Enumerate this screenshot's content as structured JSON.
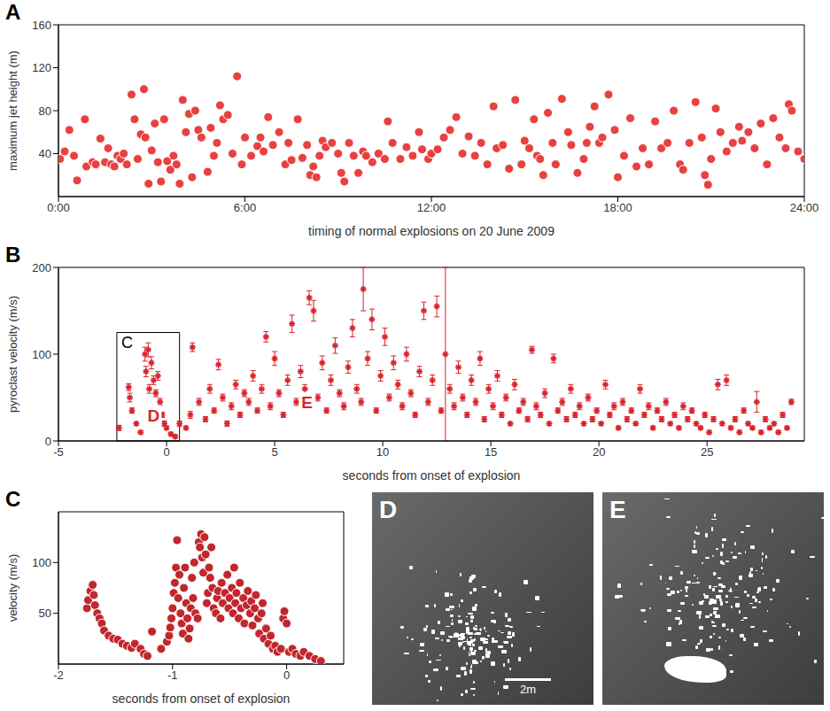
{
  "chart_data": [
    {
      "panel": "A",
      "type": "scatter",
      "x_label": "timing of normal explosions on 20 June 2009",
      "y_label": "maximum jet height (m)",
      "color": "#e8413f",
      "marker": "circle",
      "x": [
        0.05,
        0.2,
        0.35,
        0.5,
        0.6,
        0.85,
        0.9,
        1.1,
        1.2,
        1.35,
        1.5,
        1.6,
        1.7,
        1.8,
        1.9,
        2.0,
        2.1,
        2.2,
        2.35,
        2.45,
        2.55,
        2.65,
        2.75,
        2.8,
        2.9,
        3.0,
        3.1,
        3.2,
        3.3,
        3.4,
        3.5,
        3.6,
        3.7,
        3.8,
        3.9,
        4.0,
        4.1,
        4.2,
        4.3,
        4.4,
        4.5,
        4.6,
        4.8,
        4.9,
        5.0,
        5.1,
        5.2,
        5.3,
        5.45,
        5.6,
        5.75,
        5.9,
        6.0,
        6.2,
        6.4,
        6.5,
        6.6,
        6.75,
        6.9,
        7.1,
        7.3,
        7.4,
        7.5,
        7.7,
        7.85,
        8.0,
        8.1,
        8.2,
        8.3,
        8.4,
        8.5,
        8.6,
        8.8,
        9.0,
        9.1,
        9.2,
        9.35,
        9.5,
        9.65,
        9.8,
        9.9,
        10.1,
        10.3,
        10.5,
        10.6,
        10.75,
        11.0,
        11.2,
        11.4,
        11.6,
        11.7,
        11.9,
        12.0,
        12.2,
        12.4,
        12.6,
        12.8,
        13.0,
        13.2,
        13.4,
        13.6,
        13.8,
        14.0,
        14.1,
        14.3,
        14.5,
        14.7,
        14.9,
        15.0,
        15.15,
        15.3,
        15.4,
        15.5,
        15.6,
        15.75,
        15.9,
        16.0,
        16.2,
        16.4,
        16.5,
        16.7,
        16.9,
        17.0,
        17.1,
        17.25,
        17.4,
        17.5,
        17.7,
        17.9,
        18.0,
        18.2,
        18.4,
        18.6,
        18.8,
        19.0,
        19.2,
        19.4,
        19.6,
        19.8,
        20.0,
        20.1,
        20.3,
        20.5,
        20.7,
        20.8,
        20.9,
        21.0,
        21.15,
        21.3,
        21.5,
        21.7,
        21.9,
        22.0,
        22.2,
        22.4,
        22.6,
        22.8,
        23.0,
        23.2,
        23.4,
        23.5,
        23.6,
        23.8,
        24.0
      ],
      "values": [
        35,
        42,
        62,
        38,
        15,
        72,
        28,
        32,
        30,
        54,
        32,
        45,
        30,
        28,
        38,
        35,
        40,
        30,
        95,
        72,
        35,
        58,
        100,
        55,
        12,
        43,
        68,
        32,
        14,
        72,
        33,
        25,
        38,
        30,
        12,
        90,
        60,
        77,
        18,
        80,
        62,
        55,
        23,
        64,
        38,
        50,
        85,
        72,
        76,
        40,
        112,
        30,
        55,
        38,
        47,
        55,
        42,
        74,
        48,
        60,
        30,
        50,
        34,
        72,
        36,
        48,
        20,
        28,
        18,
        38,
        52,
        46,
        50,
        40,
        22,
        14,
        50,
        38,
        22,
        42,
        38,
        32,
        40,
        35,
        70,
        50,
        35,
        46,
        38,
        60,
        44,
        35,
        40,
        44,
        55,
        62,
        74,
        40,
        56,
        38,
        50,
        30,
        84,
        45,
        48,
        26,
        90,
        30,
        52,
        45,
        72,
        38,
        35,
        20,
        78,
        50,
        30,
        91,
        60,
        48,
        22,
        35,
        50,
        65,
        84,
        50,
        55,
        95,
        62,
        18,
        38,
        73,
        28,
        45,
        30,
        70,
        45,
        50,
        80,
        30,
        25,
        50,
        88,
        55,
        20,
        11,
        35,
        82,
        60,
        42,
        50,
        65,
        52,
        60,
        45,
        68,
        30,
        73,
        55,
        45,
        86,
        80,
        42,
        35
      ],
      "xlim": [
        0,
        24
      ],
      "xticks": [
        {
          "value": 0,
          "label": "0:00"
        },
        {
          "value": 6,
          "label": "6:00"
        },
        {
          "value": 12,
          "label": "12:00"
        },
        {
          "value": 18,
          "label": "18:00"
        },
        {
          "value": 24,
          "label": "24:00"
        }
      ],
      "ylim": [
        0,
        160
      ],
      "yticks": [
        40,
        80,
        120,
        160
      ]
    },
    {
      "panel": "B",
      "type": "scatter",
      "x_label": "seconds from onset of explosion",
      "y_label": "pyroclast velocity (m/s)",
      "color": "#d9222a",
      "marker": "star",
      "x": [
        -2.2,
        -1.75,
        -1.7,
        -1.6,
        -1.4,
        -1.2,
        -1.0,
        -0.95,
        -0.85,
        -0.8,
        -0.7,
        -0.6,
        -0.5,
        -0.4,
        -0.3,
        -0.2,
        -0.1,
        0.0,
        0.2,
        0.4,
        0.6,
        0.9,
        1.1,
        1.2,
        1.5,
        1.8,
        2.0,
        2.2,
        2.4,
        2.6,
        2.8,
        3.0,
        3.2,
        3.4,
        3.6,
        3.8,
        4.0,
        4.2,
        4.4,
        4.6,
        4.8,
        5.0,
        5.2,
        5.4,
        5.6,
        5.8,
        6.0,
        6.2,
        6.4,
        6.6,
        6.8,
        7.0,
        7.2,
        7.4,
        7.6,
        7.8,
        8.0,
        8.2,
        8.4,
        8.6,
        8.8,
        9.0,
        9.1,
        9.3,
        9.5,
        9.7,
        9.9,
        10.1,
        10.3,
        10.5,
        10.7,
        10.9,
        11.1,
        11.3,
        11.5,
        11.7,
        11.9,
        12.1,
        12.3,
        12.5,
        12.7,
        12.9,
        13.1,
        13.3,
        13.5,
        13.7,
        13.9,
        14.1,
        14.3,
        14.5,
        14.7,
        14.9,
        15.1,
        15.3,
        15.5,
        15.7,
        15.9,
        16.1,
        16.3,
        16.5,
        16.7,
        16.9,
        17.1,
        17.3,
        17.5,
        17.7,
        17.9,
        18.1,
        18.3,
        18.5,
        18.7,
        18.9,
        19.1,
        19.3,
        19.5,
        19.7,
        19.9,
        20.1,
        20.3,
        20.5,
        20.7,
        20.9,
        21.1,
        21.3,
        21.5,
        21.7,
        21.9,
        22.1,
        22.3,
        22.5,
        22.7,
        22.9,
        23.1,
        23.3,
        23.5,
        23.7,
        23.9,
        24.1,
        24.3,
        24.5,
        24.7,
        24.9,
        25.1,
        25.3,
        25.5,
        25.7,
        25.9,
        26.1,
        26.3,
        26.5,
        26.7,
        26.9,
        27.1,
        27.3,
        27.5,
        27.7,
        27.9,
        28.1,
        28.3,
        28.5,
        28.7,
        28.9
      ],
      "values": [
        15,
        62,
        50,
        35,
        20,
        10,
        100,
        80,
        105,
        60,
        90,
        70,
        55,
        75,
        45,
        30,
        20,
        15,
        8,
        5,
        20,
        15,
        30,
        108,
        45,
        25,
        60,
        35,
        88,
        50,
        20,
        40,
        65,
        30,
        55,
        45,
        75,
        35,
        60,
        120,
        40,
        95,
        55,
        30,
        70,
        135,
        45,
        80,
        60,
        165,
        150,
        50,
        90,
        35,
        70,
        110,
        55,
        40,
        85,
        130,
        60,
        45,
        175,
        95,
        140,
        35,
        75,
        120,
        50,
        90,
        65,
        40,
        100,
        55,
        30,
        80,
        150,
        45,
        70,
        155,
        35,
        100,
        60,
        40,
        85,
        50,
        30,
        70,
        45,
        95,
        25,
        60,
        40,
        75,
        30,
        50,
        20,
        65,
        35,
        45,
        25,
        105,
        40,
        30,
        55,
        20,
        95,
        35,
        45,
        25,
        60,
        30,
        40,
        20,
        50,
        25,
        35,
        20,
        65,
        30,
        40,
        15,
        45,
        25,
        35,
        20,
        60,
        30,
        40,
        15,
        35,
        25,
        45,
        20,
        30,
        15,
        40,
        25,
        35,
        20,
        15,
        30,
        10,
        25,
        65,
        20,
        70,
        15,
        25,
        10,
        35,
        20,
        15,
        45,
        10,
        25,
        15,
        20,
        10,
        30,
        15,
        45
      ],
      "errors": [
        3,
        4,
        5,
        3,
        2,
        2,
        8,
        6,
        8,
        5,
        7,
        5,
        4,
        5,
        4,
        3,
        3,
        2,
        2,
        2,
        3,
        2,
        4,
        5,
        4,
        3,
        5,
        3,
        6,
        4,
        3,
        4,
        5,
        3,
        4,
        4,
        6,
        3,
        5,
        6,
        4,
        8,
        4,
        3,
        6,
        10,
        4,
        7,
        5,
        8,
        12,
        4,
        8,
        3,
        6,
        9,
        4,
        4,
        7,
        10,
        5,
        4,
        25,
        8,
        12,
        3,
        6,
        10,
        4,
        8,
        5,
        4,
        8,
        4,
        3,
        6,
        10,
        4,
        6,
        12,
        3,
        100,
        5,
        4,
        7,
        4,
        3,
        6,
        4,
        8,
        3,
        5,
        4,
        6,
        3,
        4,
        2,
        6,
        3,
        4,
        3,
        4,
        4,
        3,
        5,
        2,
        5,
        3,
        4,
        3,
        5,
        3,
        4,
        2,
        4,
        3,
        3,
        2,
        5,
        3,
        4,
        2,
        4,
        3,
        3,
        2,
        5,
        3,
        4,
        2,
        3,
        3,
        4,
        2,
        3,
        2,
        4,
        3,
        3,
        2,
        2,
        3,
        2,
        3,
        6,
        2,
        6,
        2,
        3,
        2,
        3,
        2,
        2,
        12,
        2,
        3,
        2,
        2,
        2,
        3,
        2,
        3
      ],
      "inset_box": {
        "label": "C",
        "x": [
          -2.3,
          0.6
        ],
        "y": [
          0,
          125
        ]
      },
      "annotations": [
        {
          "text": "D",
          "x": -0.6,
          "y": 30
        },
        {
          "text": "E",
          "x": 6.5,
          "y": 45
        }
      ],
      "xlim": [
        -5,
        29.5
      ],
      "xticks": [
        -5,
        0,
        5,
        10,
        15,
        20,
        25
      ],
      "ylim": [
        0,
        200
      ],
      "yticks": [
        0,
        100,
        200
      ]
    },
    {
      "panel": "C",
      "type": "scatter",
      "x_label": "seconds from onset of explosion",
      "y_label": "velocity (m/s)",
      "color": "#c1272d",
      "marker": "circle",
      "x": [
        -1.75,
        -1.74,
        -1.72,
        -1.7,
        -1.69,
        -1.68,
        -1.66,
        -1.64,
        -1.62,
        -1.6,
        -1.56,
        -1.52,
        -1.48,
        -1.44,
        -1.4,
        -1.36,
        -1.33,
        -1.28,
        -1.25,
        -1.22,
        -1.18,
        -1.1,
        -1.05,
        -1.03,
        -1.02,
        -1.01,
        -1.0,
        -0.99,
        -0.98,
        -0.97,
        -0.96,
        -0.95,
        -0.94,
        -0.93,
        -0.92,
        -0.91,
        -0.9,
        -0.89,
        -0.88,
        -0.87,
        -0.86,
        -0.85,
        -0.84,
        -0.83,
        -0.82,
        -0.81,
        -0.8,
        -0.78,
        -0.77,
        -0.76,
        -0.75,
        -0.74,
        -0.73,
        -0.72,
        -0.71,
        -0.7,
        -0.69,
        -0.68,
        -0.67,
        -0.66,
        -0.65,
        -0.64,
        -0.62,
        -0.61,
        -0.6,
        -0.58,
        -0.57,
        -0.56,
        -0.54,
        -0.52,
        -0.51,
        -0.5,
        -0.48,
        -0.47,
        -0.46,
        -0.45,
        -0.44,
        -0.42,
        -0.41,
        -0.4,
        -0.38,
        -0.37,
        -0.35,
        -0.34,
        -0.32,
        -0.31,
        -0.3,
        -0.28,
        -0.27,
        -0.25,
        -0.24,
        -0.22,
        -0.21,
        -0.2,
        -0.18,
        -0.16,
        -0.14,
        -0.12,
        -0.1,
        -0.08,
        -0.05,
        -0.03,
        -0.02,
        0.0,
        0.02,
        0.05,
        0.08,
        0.12,
        0.15,
        0.2,
        0.25,
        0.3
      ],
      "values": [
        55,
        63,
        72,
        78,
        68,
        58,
        50,
        45,
        40,
        33,
        28,
        25,
        24,
        20,
        18,
        16,
        20,
        15,
        10,
        8,
        32,
        15,
        22,
        28,
        36,
        45,
        55,
        70,
        80,
        95,
        122,
        65,
        88,
        50,
        40,
        30,
        75,
        95,
        60,
        45,
        25,
        35,
        55,
        85,
        65,
        100,
        50,
        45,
        120,
        115,
        128,
        105,
        90,
        125,
        108,
        60,
        70,
        95,
        85,
        115,
        75,
        55,
        50,
        65,
        72,
        45,
        80,
        60,
        70,
        88,
        55,
        65,
        75,
        50,
        95,
        60,
        70,
        45,
        80,
        55,
        65,
        40,
        58,
        72,
        50,
        62,
        38,
        55,
        68,
        45,
        30,
        50,
        60,
        25,
        35,
        20,
        28,
        15,
        18,
        12,
        15,
        45,
        52,
        40,
        12,
        15,
        10,
        8,
        12,
        8,
        5,
        3
      ],
      "xlim": [
        -2,
        0.5
      ],
      "xticks": [
        -2,
        -1,
        0
      ],
      "ylim": [
        0,
        150
      ],
      "yticks": [
        50,
        100
      ]
    }
  ],
  "images": [
    {
      "panel": "D",
      "scale_bar": "2m"
    },
    {
      "panel": "E"
    }
  ]
}
